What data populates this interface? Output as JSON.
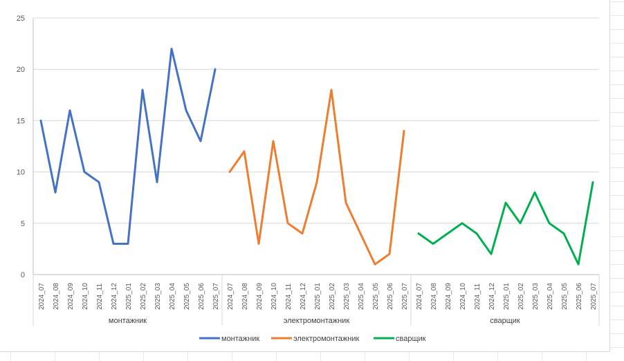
{
  "chart_data": {
    "type": "line",
    "title": "",
    "xlabel": "",
    "ylabel": "",
    "ylim": [
      0,
      25
    ],
    "yticks": [
      "0",
      "5",
      "10",
      "15",
      "20",
      "25"
    ],
    "grid": "horizontal",
    "legend_position": "bottom",
    "categories": [
      "2024_07",
      "2024_08",
      "2024_09",
      "2024_10",
      "2024_11",
      "2024_12",
      "2025_01",
      "2025_02",
      "2025_03",
      "2025_04",
      "2025_05",
      "2025_06",
      "2025_07"
    ],
    "series": [
      {
        "name": "монтажник",
        "group_label": "монтажник",
        "color": "#4472c4",
        "values": [
          15,
          8,
          16,
          10,
          9,
          3,
          3,
          18,
          9,
          22,
          16,
          13,
          20
        ]
      },
      {
        "name": "электромонтажник",
        "group_label": "электромонтажник",
        "color": "#ed7d31",
        "values": [
          10,
          12,
          3,
          13,
          5,
          4,
          9,
          18,
          7,
          4,
          1,
          2,
          14
        ]
      },
      {
        "name": "сварщик",
        "group_label": "сварщик",
        "color": "#00b050",
        "values": [
          4,
          3,
          4,
          5,
          4,
          2,
          7,
          5,
          8,
          5,
          4,
          1,
          9
        ]
      }
    ]
  }
}
